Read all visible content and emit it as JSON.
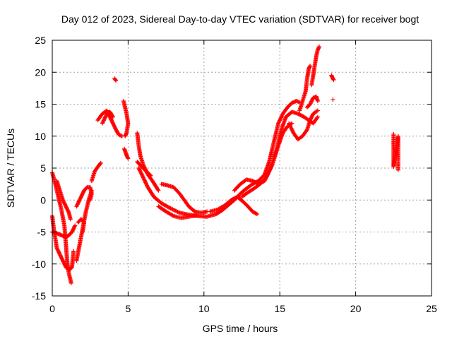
{
  "chart_data": {
    "type": "scatter",
    "title": "Day 012 of 2023, Sidereal Day-to-day VTEC variation (SDTVAR) for receiver bogt",
    "xlabel": "GPS time / hours",
    "ylabel": "SDTVAR / TECUs",
    "xlim": [
      0,
      25
    ],
    "ylim": [
      -15,
      25
    ],
    "xticks": [
      0,
      5,
      10,
      15,
      20,
      25
    ],
    "yticks": [
      -15,
      -10,
      -5,
      0,
      5,
      10,
      15,
      20,
      25
    ],
    "grid": true,
    "marker": "+",
    "color": "#ff0000",
    "tracks": [
      [
        [
          0.0,
          4.3
        ],
        [
          0.2,
          2.5
        ],
        [
          0.4,
          0.5
        ],
        [
          0.6,
          -1.5
        ],
        [
          0.8,
          -4.0
        ],
        [
          0.9,
          -7.0
        ],
        [
          1.0,
          -10.0
        ],
        [
          1.1,
          -11.5
        ],
        [
          1.2,
          -12.5
        ],
        [
          1.25,
          -13.0
        ]
      ],
      [
        [
          0.0,
          -2.5
        ],
        [
          0.1,
          -4.5
        ],
        [
          0.2,
          -6.0
        ],
        [
          0.3,
          -7.5
        ],
        [
          0.5,
          -8.5
        ],
        [
          0.7,
          -9.5
        ],
        [
          0.9,
          -10.5
        ],
        [
          1.1,
          -11.0
        ],
        [
          1.3,
          -10.5
        ],
        [
          1.4,
          -8.0
        ]
      ],
      [
        [
          0.0,
          -5.0
        ],
        [
          0.3,
          -5.2
        ],
        [
          0.6,
          -5.5
        ],
        [
          0.9,
          -5.8
        ],
        [
          1.1,
          -5.5
        ],
        [
          1.3,
          -5.0
        ],
        [
          1.5,
          -4.0
        ]
      ],
      [
        [
          0.3,
          3.0
        ],
        [
          0.5,
          1.5
        ],
        [
          0.7,
          0.0
        ],
        [
          0.9,
          -1.0
        ],
        [
          1.1,
          -2.0
        ],
        [
          1.2,
          -3.0
        ]
      ],
      [
        [
          1.6,
          -9.5
        ],
        [
          1.8,
          -7.0
        ],
        [
          2.0,
          -4.5
        ],
        [
          2.2,
          -2.0
        ],
        [
          2.4,
          0.0
        ],
        [
          2.6,
          1.5
        ]
      ],
      [
        [
          1.6,
          -1.0
        ],
        [
          1.9,
          0.5
        ],
        [
          2.1,
          1.5
        ],
        [
          2.3,
          2.0
        ],
        [
          2.5,
          2.0
        ],
        [
          2.6,
          1.0
        ],
        [
          2.5,
          0.0
        ]
      ],
      [
        [
          1.7,
          -3.5
        ],
        [
          1.9,
          -3.0
        ],
        [
          2.1,
          -3.5
        ],
        [
          2.0,
          -5.0
        ]
      ],
      [
        [
          2.6,
          3.0
        ],
        [
          2.8,
          4.5
        ],
        [
          3.0,
          5.2
        ],
        [
          3.2,
          5.8
        ]
      ],
      [
        [
          3.0,
          12.5
        ],
        [
          3.3,
          13.5
        ],
        [
          3.6,
          14.0
        ],
        [
          3.8,
          13.0
        ],
        [
          4.0,
          12.0
        ],
        [
          4.2,
          11.0
        ],
        [
          4.4,
          10.2
        ],
        [
          4.6,
          10.0
        ]
      ],
      [
        [
          3.3,
          12.0
        ],
        [
          3.6,
          13.5
        ],
        [
          3.8,
          13.8
        ],
        [
          4.0,
          13.0
        ]
      ],
      [
        [
          4.1,
          19.0
        ],
        [
          4.2,
          18.7
        ]
      ],
      [
        [
          4.7,
          15.5
        ],
        [
          4.8,
          14.5
        ],
        [
          4.9,
          13.5
        ],
        [
          5.0,
          12.0
        ],
        [
          4.9,
          10.5
        ],
        [
          4.8,
          10.0
        ]
      ],
      [
        [
          4.75,
          8.0
        ],
        [
          4.9,
          7.0
        ],
        [
          5.0,
          6.5
        ]
      ],
      [
        [
          5.6,
          10.5
        ],
        [
          5.7,
          8.5
        ],
        [
          5.8,
          7.0
        ],
        [
          6.0,
          5.5
        ],
        [
          6.3,
          4.0
        ],
        [
          6.6,
          3.0
        ],
        [
          7.0,
          1.5
        ]
      ],
      [
        [
          5.6,
          6.0
        ],
        [
          5.9,
          5.2
        ],
        [
          6.2,
          4.5
        ],
        [
          6.5,
          3.8
        ]
      ],
      [
        [
          5.7,
          5.0
        ],
        [
          6.0,
          3.5
        ],
        [
          6.3,
          2.0
        ],
        [
          6.7,
          0.5
        ],
        [
          7.2,
          -0.5
        ],
        [
          7.8,
          -1.3
        ],
        [
          8.4,
          -2.0
        ],
        [
          9.0,
          -2.3
        ],
        [
          9.6,
          -2.5
        ],
        [
          10.2,
          -2.6
        ],
        [
          10.8,
          -2.2
        ],
        [
          11.2,
          -1.6
        ],
        [
          11.6,
          -0.8
        ],
        [
          12.0,
          0.0
        ],
        [
          12.4,
          1.0
        ],
        [
          12.8,
          1.8
        ],
        [
          13.2,
          2.5
        ],
        [
          13.6,
          3.0
        ],
        [
          14.0,
          4.0
        ],
        [
          14.3,
          6.0
        ],
        [
          14.6,
          9.0
        ],
        [
          14.9,
          12.0
        ],
        [
          15.2,
          13.5
        ],
        [
          15.5,
          14.5
        ],
        [
          15.8,
          15.2
        ],
        [
          16.1,
          15.5
        ],
        [
          16.3,
          15.3
        ]
      ],
      [
        [
          7.2,
          2.5
        ],
        [
          7.6,
          2.3
        ],
        [
          8.0,
          2.0
        ],
        [
          8.4,
          1.0
        ],
        [
          8.7,
          0.0
        ],
        [
          9.0,
          -1.0
        ],
        [
          9.4,
          -1.8
        ],
        [
          9.8,
          -2.0
        ],
        [
          10.2,
          -1.8
        ]
      ],
      [
        [
          7.0,
          -1.0
        ],
        [
          7.5,
          -1.8
        ],
        [
          8.0,
          -2.5
        ],
        [
          8.5,
          -2.8
        ],
        [
          9.0,
          -2.6
        ],
        [
          9.5,
          -2.4
        ]
      ],
      [
        [
          10.4,
          -1.8
        ],
        [
          10.9,
          -1.5
        ],
        [
          11.4,
          -0.8
        ],
        [
          11.8,
          0.0
        ],
        [
          12.2,
          0.5
        ],
        [
          12.6,
          -0.3
        ],
        [
          12.9,
          -1.0
        ],
        [
          13.2,
          -1.8
        ],
        [
          13.5,
          -2.2
        ]
      ],
      [
        [
          12.0,
          1.5
        ],
        [
          12.4,
          2.5
        ],
        [
          12.8,
          3.2
        ],
        [
          13.2,
          3.0
        ],
        [
          13.6,
          2.5
        ],
        [
          14.0,
          3.0
        ],
        [
          14.4,
          5.0
        ],
        [
          14.8,
          8.0
        ],
        [
          15.1,
          11.0
        ],
        [
          15.4,
          13.0
        ],
        [
          15.8,
          13.8
        ],
        [
          16.2,
          13.5
        ],
        [
          16.6,
          13.0
        ],
        [
          16.9,
          12.5
        ],
        [
          17.2,
          12.0
        ],
        [
          17.5,
          13.0
        ]
      ],
      [
        [
          12.5,
          0.5
        ],
        [
          12.9,
          1.2
        ],
        [
          13.3,
          1.8
        ],
        [
          13.7,
          2.5
        ],
        [
          14.1,
          3.5
        ],
        [
          14.5,
          5.5
        ],
        [
          14.9,
          8.5
        ],
        [
          15.2,
          10.5
        ],
        [
          15.5,
          11.5
        ],
        [
          15.8,
          12.0
        ]
      ],
      [
        [
          15.6,
          12.0
        ],
        [
          15.9,
          10.5
        ],
        [
          16.2,
          9.5
        ],
        [
          16.5,
          10.0
        ],
        [
          16.8,
          11.0
        ],
        [
          17.0,
          12.5
        ],
        [
          17.2,
          13.5
        ],
        [
          17.5,
          14.0
        ]
      ],
      [
        [
          16.3,
          14.0
        ],
        [
          16.5,
          15.5
        ],
        [
          16.7,
          17.0
        ],
        [
          16.8,
          19.0
        ],
        [
          16.9,
          20.5
        ],
        [
          17.0,
          21.0
        ]
      ],
      [
        [
          17.1,
          18.0
        ],
        [
          17.2,
          19.5
        ],
        [
          17.3,
          21.0
        ],
        [
          17.4,
          22.5
        ],
        [
          17.5,
          23.5
        ],
        [
          17.6,
          24.0
        ]
      ],
      [
        [
          16.8,
          14.5
        ],
        [
          17.0,
          15.0
        ],
        [
          17.2,
          16.0
        ],
        [
          17.4,
          16.2
        ],
        [
          17.5,
          15.5
        ]
      ],
      [
        [
          18.4,
          19.5
        ],
        [
          18.5,
          19.0
        ],
        [
          18.55,
          18.8
        ]
      ],
      [
        [
          18.5,
          15.7
        ]
      ],
      [
        [
          22.5,
          10.3
        ],
        [
          22.5,
          7.8
        ],
        [
          22.5,
          5.8
        ],
        [
          22.5,
          5.2
        ],
        [
          22.8,
          10.0
        ],
        [
          22.8,
          8.4
        ],
        [
          22.8,
          4.7
        ]
      ]
    ]
  }
}
